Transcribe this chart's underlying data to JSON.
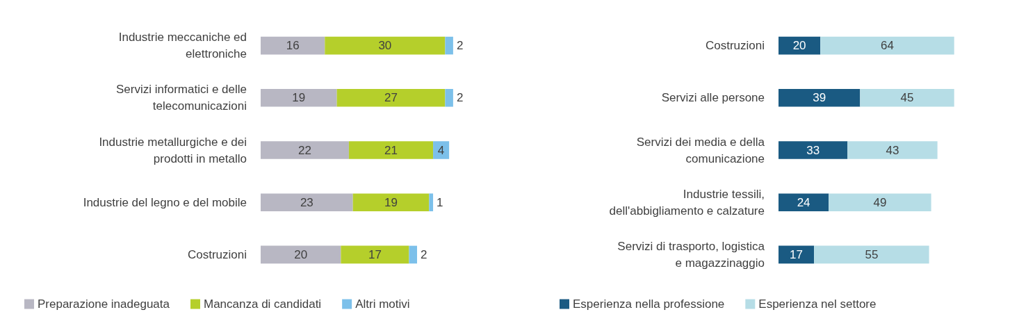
{
  "chart_data": [
    {
      "type": "bar",
      "orientation": "horizontal",
      "stacked": true,
      "data_labels": true,
      "legend": "bottom",
      "categories": [
        "Industrie meccaniche ed elettroniche",
        "Servizi informatici e delle telecomunicazioni",
        "Industrie metallurgiche e dei prodotti in metallo",
        "Industrie del legno e del mobile",
        "Costruzioni"
      ],
      "series": [
        {
          "name": "Preparazione inadeguata",
          "color": "#b8b7c3",
          "values": [
            16,
            19,
            22,
            23,
            20
          ]
        },
        {
          "name": "Mancanza di candidati",
          "color": "#b5cf2b",
          "values": [
            30,
            27,
            21,
            19,
            17
          ]
        },
        {
          "name": "Altri motivi",
          "color": "#7cc0ea",
          "values": [
            2,
            2,
            4,
            1,
            2
          ]
        }
      ]
    },
    {
      "type": "bar",
      "orientation": "horizontal",
      "stacked": true,
      "data_labels": true,
      "legend": "bottom",
      "categories": [
        "Costruzioni",
        "Servizi alle persone",
        "Servizi dei media e della comunicazione",
        "Industrie tessili, dell'abbigliamento e calzature",
        "Servizi di trasporto, logistica e magazzinaggio"
      ],
      "series": [
        {
          "name": "Esperienza nella professione",
          "color": "#1a5a82",
          "values": [
            20,
            39,
            33,
            24,
            17
          ]
        },
        {
          "name": "Esperienza nel settore",
          "color": "#b6dde6",
          "values": [
            64,
            45,
            43,
            49,
            55
          ]
        }
      ]
    }
  ]
}
